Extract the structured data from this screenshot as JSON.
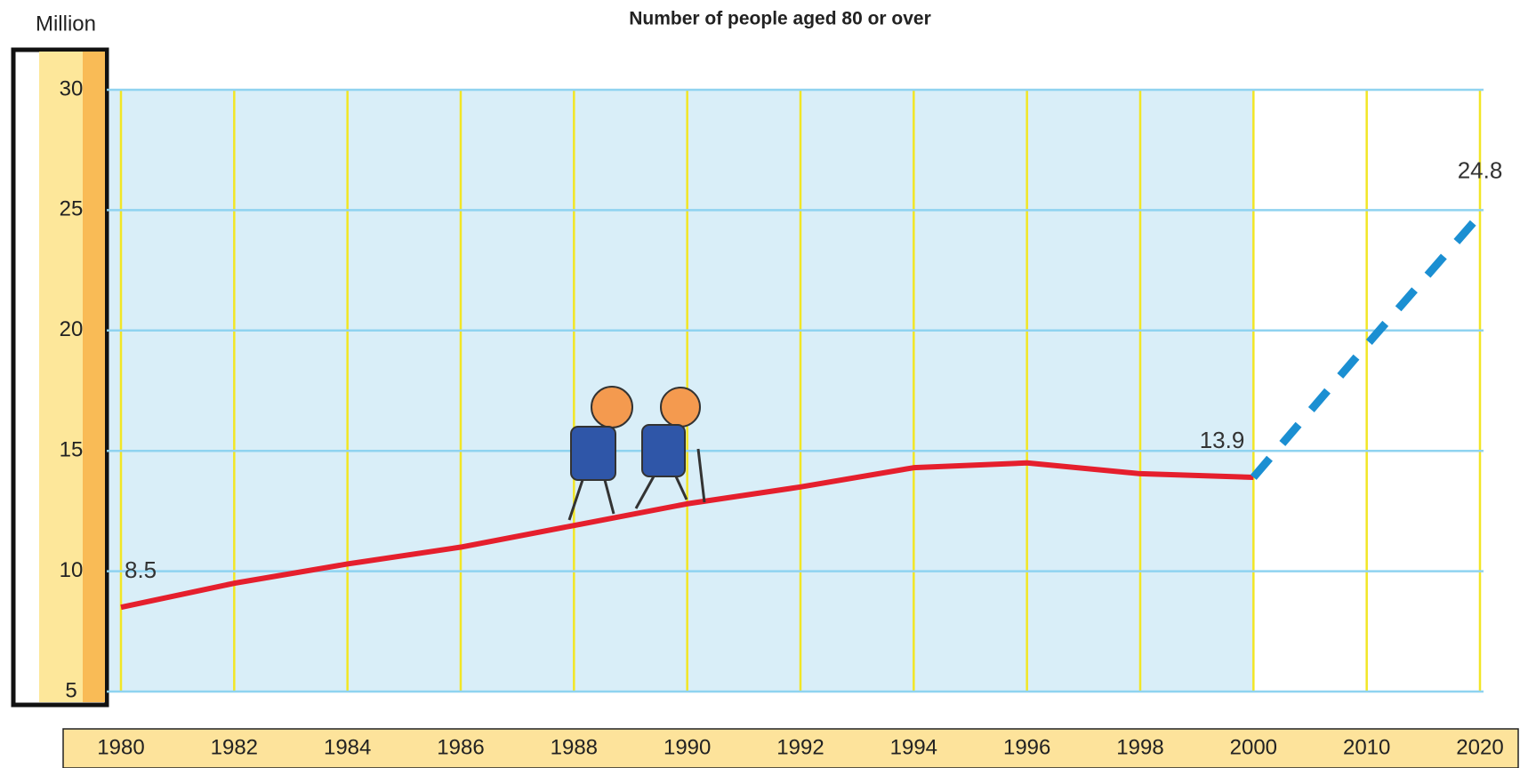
{
  "chart_data": {
    "type": "line",
    "title": "Number of people aged 80 or over",
    "y_label": "Million",
    "categories": [
      "1980",
      "1982",
      "1984",
      "1986",
      "1988",
      "1990",
      "1992",
      "1994",
      "1996",
      "1998",
      "2000",
      "2010",
      "2020"
    ],
    "series": [
      {
        "color": "#e51f2d",
        "dashed": false,
        "values": [
          8.5,
          9.5,
          10.3,
          11.0,
          11.9,
          12.8,
          13.5,
          14.3,
          14.5,
          14.05,
          13.9,
          null,
          null
        ]
      },
      {
        "color": "#1b8fd2",
        "dashed": true,
        "values": [
          null,
          null,
          null,
          null,
          null,
          null,
          null,
          null,
          null,
          null,
          13.9,
          19.4,
          24.8
        ]
      }
    ],
    "ylim": [
      5,
      30
    ],
    "yticks": [
      5,
      10,
      15,
      20,
      25,
      30
    ],
    "grid": true
  }
}
